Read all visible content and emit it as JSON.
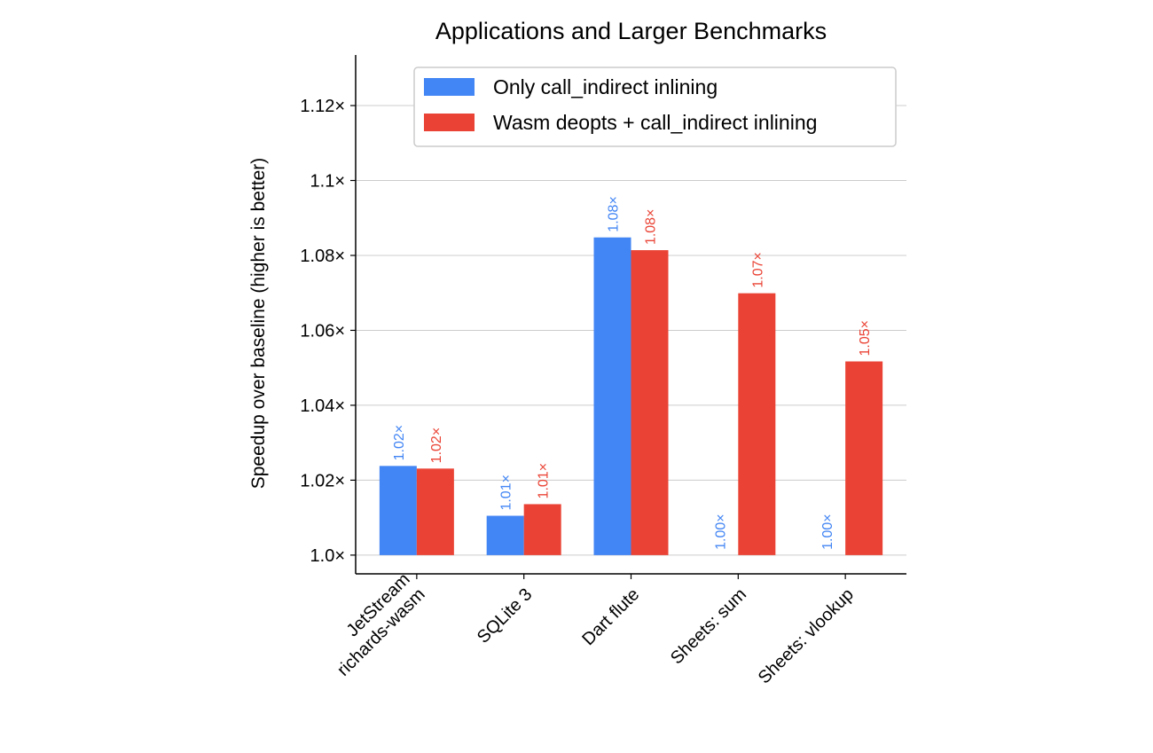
{
  "chart_data": {
    "type": "bar",
    "title": "Applications and Larger Benchmarks",
    "xlabel": "",
    "ylabel": "Speedup over baseline (higher is better)",
    "categories": [
      "JetStream\nrichards-wasm",
      "SQLite 3",
      "Dart flute",
      "Sheets: sum",
      "Sheets: vlookup"
    ],
    "series": [
      {
        "name": "Only call_indirect inlining",
        "color": "#4285F4",
        "values": [
          1.0238,
          1.0105,
          1.0848,
          1.0,
          1.0
        ],
        "labels": [
          "1.02×",
          "1.01×",
          "1.08×",
          "1.00×",
          "1.00×"
        ]
      },
      {
        "name": "Wasm deopts + call_indirect inlining",
        "color": "#EA4335",
        "values": [
          1.0231,
          1.0136,
          1.0814,
          1.0699,
          1.0517
        ],
        "labels": [
          "1.02×",
          "1.01×",
          "1.08×",
          "1.07×",
          "1.05×"
        ]
      }
    ],
    "yticks": [
      1.0,
      1.02,
      1.04,
      1.06,
      1.08,
      1.1,
      1.12
    ],
    "ytick_labels": [
      "1.0×",
      "1.02×",
      "1.04×",
      "1.06×",
      "1.08×",
      "1.1×",
      "1.12×"
    ],
    "ylim": [
      0.995,
      1.1335
    ],
    "grid": "horizontal",
    "legend": "top-right"
  }
}
